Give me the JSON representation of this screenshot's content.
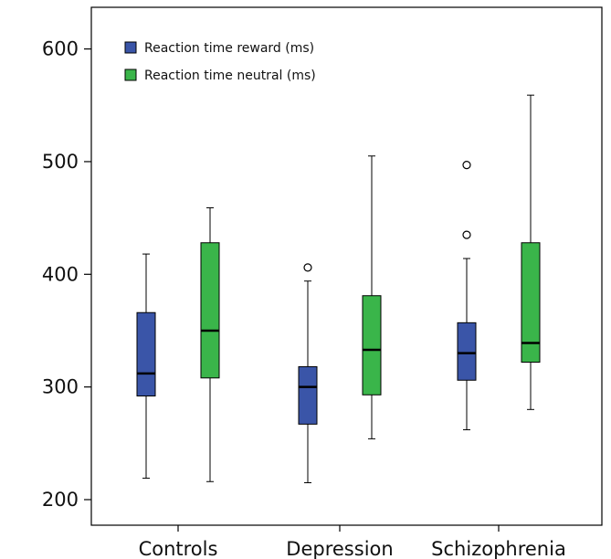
{
  "chart_data": {
    "type": "boxplot",
    "title": "",
    "xlabel": "",
    "ylabel": "",
    "ylim": [
      185,
      620
    ],
    "yticks": [
      200,
      300,
      400,
      500,
      600
    ],
    "categories": [
      "Controls",
      "Depression",
      "Schizophrenia"
    ],
    "grid": false,
    "legend_position": "top-left",
    "series": [
      {
        "name": "Reaction time reward (ms)",
        "color": "#3a55a8",
        "boxes": [
          {
            "whisker_low": 219,
            "q1": 292,
            "median": 312,
            "q3": 366,
            "whisker_high": 418,
            "outliers": []
          },
          {
            "whisker_low": 215,
            "q1": 267,
            "median": 300,
            "q3": 318,
            "whisker_high": 394,
            "outliers": [
              406
            ]
          },
          {
            "whisker_low": 262,
            "q1": 306,
            "median": 330,
            "q3": 357,
            "whisker_high": 414,
            "outliers": [
              435,
              497
            ]
          }
        ]
      },
      {
        "name": "Reaction time neutral (ms)",
        "color": "#3ab54a",
        "boxes": [
          {
            "whisker_low": 216,
            "q1": 308,
            "median": 350,
            "q3": 428,
            "whisker_high": 459,
            "outliers": []
          },
          {
            "whisker_low": 254,
            "q1": 293,
            "median": 333,
            "q3": 381,
            "whisker_high": 505,
            "outliers": []
          },
          {
            "whisker_low": 280,
            "q1": 322,
            "median": 339,
            "q3": 428,
            "whisker_high": 559,
            "outliers": []
          }
        ]
      }
    ]
  }
}
